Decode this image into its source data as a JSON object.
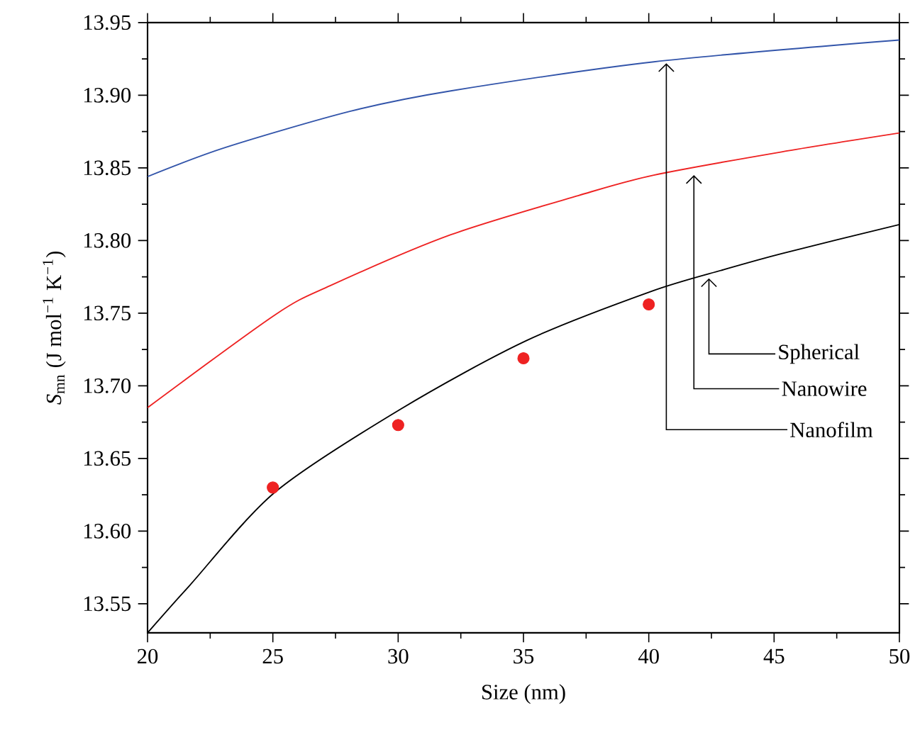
{
  "chart_data": {
    "type": "line",
    "xlabel": "Size (nm)",
    "ylabel": "*S*$_{mn}$ (J mol$^{−1}$ K$^{−1}$)",
    "xlim": [
      20,
      50
    ],
    "ylim": [
      13.53,
      13.95
    ],
    "xticks": [
      20,
      25,
      30,
      35,
      40,
      45,
      50
    ],
    "yticks": [
      13.55,
      {
        "value": 13.6,
        "label": "13.60"
      },
      13.65,
      {
        "value": 13.7,
        "label": "13.70"
      },
      13.75,
      {
        "value": 13.8,
        "label": "13.80"
      },
      13.85,
      {
        "value": 13.9,
        "label": "13.90"
      },
      13.95
    ],
    "series": [
      {
        "type": "line",
        "color": "#3355aa",
        "x": [
          20,
          23.1,
          28.1,
          32.1,
          40.2,
          50
        ],
        "values": [
          13.844,
          13.864,
          13.889,
          13.903,
          13.923,
          13.938
        ]
      },
      {
        "type": "line",
        "color": "#ee2222",
        "x": [
          20,
          25.1,
          27.3,
          32.1,
          37.2,
          40.2,
          45.3,
          50
        ],
        "values": [
          13.685,
          13.749,
          13.769,
          13.804,
          13.831,
          13.845,
          13.861,
          13.874
        ]
      },
      {
        "type": "line",
        "color": "#000000",
        "x": [
          20,
          21.7,
          25.1,
          30.1,
          35.1,
          40.1,
          43,
          45.3,
          50
        ],
        "values": [
          13.53,
          13.563,
          13.627,
          13.684,
          13.731,
          13.765,
          13.78,
          13.791,
          13.811
        ]
      },
      {
        "type": "scatter",
        "color": "#ee2222",
        "marker": "circle",
        "x": [
          25,
          30,
          35,
          40
        ],
        "values": [
          13.63,
          13.673,
          13.719,
          13.756
        ]
      }
    ],
    "annotations": [
      {
        "text": "Spherical",
        "x": 42.4,
        "y": 13.774
      },
      {
        "text": "Nanowire",
        "x": 41.8,
        "y": 13.845
      },
      {
        "text": "Nanofilm",
        "x": 40.7,
        "y": 13.922
      }
    ]
  }
}
